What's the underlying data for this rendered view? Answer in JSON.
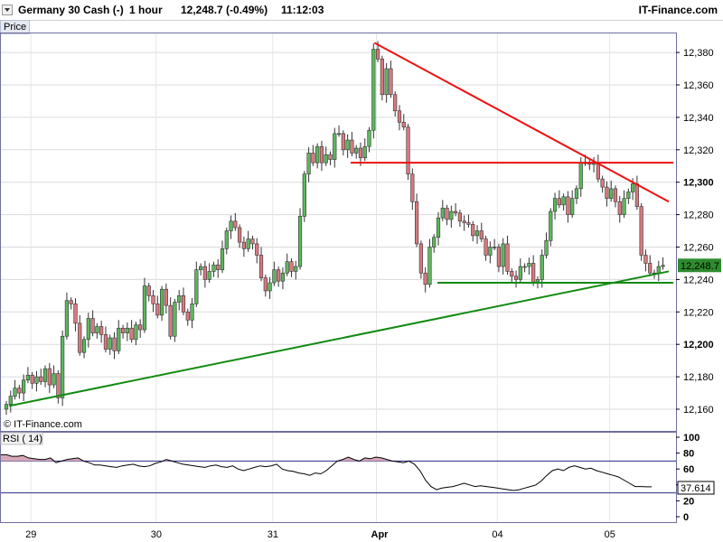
{
  "header": {
    "instrument": "Germany 30 Cash (-)",
    "timeframe": "1 hour",
    "last": "12,248.7 (-0.49%)",
    "time": "11:12:03",
    "brand": "IT-Finance.com"
  },
  "price_tab": "Price",
  "watermark": "© IT-Finance.com",
  "colors": {
    "up_candle": "#5cb85c",
    "down_candle": "#d9797f",
    "resistance_line": "#ee1111",
    "support_line": "#138a13",
    "last_price_box": "#2e8b2e",
    "rsi_line": "#000000",
    "rsi_fill": "#d6a8b8",
    "rsi_levels": "#2a2a90"
  },
  "chart_data": [
    {
      "type": "candlestick",
      "title": "Germany 30 Cash (-) 1 hour",
      "y_ticks": [
        "12,160",
        "12,180",
        "12,200",
        "12,220",
        "12,240",
        "12,260",
        "12,280",
        "12,300",
        "12,320",
        "12,340",
        "12,360",
        "12,380"
      ],
      "x_ticks": [
        "29",
        "30",
        "31",
        "Apr",
        "04",
        "05"
      ],
      "ylim": [
        12150,
        12390
      ],
      "last_price_label": "12,248.7",
      "series": [
        {
          "name": "price",
          "ohlc_series": "closes",
          "values": [
            12163,
            12168,
            12173,
            12170,
            12178,
            12181,
            12176,
            12180,
            12177,
            12185,
            12175,
            12182,
            12167,
            12205,
            12227,
            12225,
            12213,
            12195,
            12203,
            12216,
            12207,
            12211,
            12206,
            12197,
            12204,
            12196,
            12210,
            12207,
            12210,
            12203,
            12212,
            12209,
            12236,
            12230,
            12225,
            12218,
            12234,
            12224,
            12205,
            12226,
            12230,
            12220,
            12215,
            12225,
            12246,
            12248,
            12240,
            12245,
            12249,
            12246,
            12259,
            12270,
            12276,
            12272,
            12263,
            12259,
            12265,
            12262,
            12255,
            12241,
            12233,
            12238,
            12246,
            12239,
            12244,
            12251,
            12245,
            12248,
            12279,
            12305,
            12318,
            12312,
            12322,
            12312,
            12317,
            12314,
            12330,
            12330,
            12320,
            12326,
            12318,
            12321,
            12315,
            12322,
            12332,
            12382,
            12376,
            12354,
            12370,
            12354,
            12344,
            12337,
            12334,
            12305,
            12288,
            12262,
            12244,
            12237,
            12260,
            12266,
            12278,
            12284,
            12277,
            12282,
            12281,
            12276,
            12275,
            12274,
            12267,
            12270,
            12265,
            12255,
            12260,
            12260,
            12248,
            12262,
            12245,
            12242,
            12240,
            12248,
            12248,
            12250,
            12238,
            12240,
            12255,
            12264,
            12282,
            12290,
            12286,
            12291,
            12280,
            12290,
            12296,
            12312,
            12312,
            12311,
            12312,
            12302,
            12297,
            12290,
            12296,
            12288,
            12280,
            12290,
            12294,
            12299,
            12285,
            12255,
            12250,
            12244,
            12244,
            12248,
            12248.7
          ]
        },
        {
          "name": "support_horizontal",
          "values": [
            12238
          ]
        },
        {
          "name": "resistance_horizontal",
          "values": [
            12312
          ]
        }
      ],
      "trendlines": [
        {
          "name": "descending resistance",
          "from": [
            12386,
            "Apr"
          ],
          "to": [
            12288,
            "05"
          ]
        },
        {
          "name": "ascending support",
          "from": [
            12162,
            "29"
          ],
          "to": [
            12245,
            "05"
          ]
        }
      ]
    },
    {
      "type": "line",
      "title": "RSI ( 14)",
      "y_ticks": [
        "100",
        "80",
        "60",
        "40",
        "20",
        "0"
      ],
      "ylim": [
        0,
        100
      ],
      "levels": [
        70,
        30
      ],
      "last_value_label": "37.614",
      "series": [
        {
          "name": "RSI ( 14)",
          "values": [
            78,
            78,
            76,
            76,
            77,
            74,
            73,
            72,
            72,
            74,
            68,
            70,
            72,
            73,
            74,
            70,
            68,
            65,
            65,
            64,
            63,
            62,
            64,
            65,
            66,
            64,
            63,
            64,
            67,
            69,
            72,
            70,
            68,
            66,
            65,
            64,
            63,
            62,
            64,
            65,
            63,
            62,
            64,
            60,
            58,
            60,
            62,
            64,
            63,
            64,
            66,
            60,
            58,
            57,
            55,
            54,
            52,
            55,
            54,
            58,
            64,
            70,
            72,
            75,
            72,
            70,
            74,
            73,
            75,
            74,
            72,
            70,
            69,
            68,
            70,
            66,
            58,
            46,
            38,
            34,
            36,
            37,
            38,
            40,
            42,
            40,
            38,
            39,
            38,
            37,
            36,
            35,
            34,
            33,
            34,
            36,
            38,
            40,
            45,
            52,
            58,
            60,
            58,
            62,
            64,
            62,
            60,
            61,
            58,
            56,
            54,
            52,
            50,
            46,
            42,
            38,
            38,
            37.6,
            37.614
          ]
        }
      ]
    }
  ]
}
